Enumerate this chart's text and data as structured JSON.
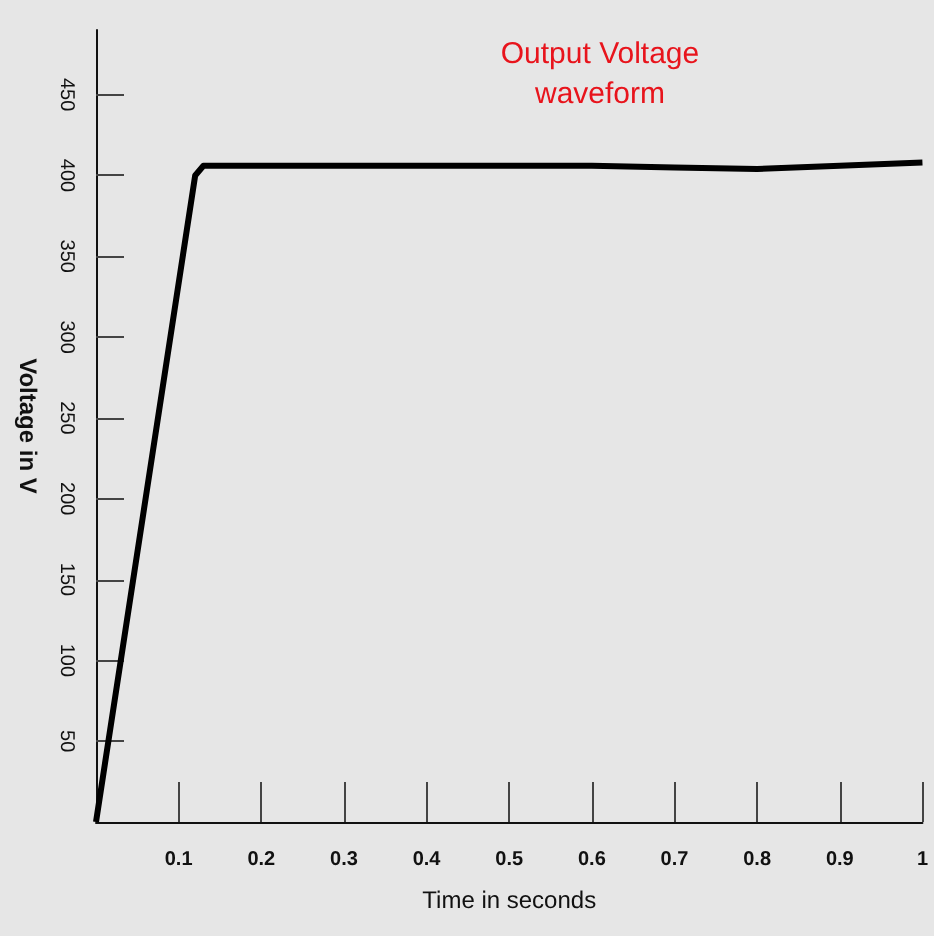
{
  "chart_data": {
    "type": "line",
    "title": "Output Voltage\nwaveform",
    "xlabel": "Time in seconds",
    "ylabel": "Voltage in V",
    "x": [
      0,
      0.12,
      0.13,
      0.2,
      0.4,
      0.6,
      0.7,
      0.8,
      0.9,
      1.0
    ],
    "series": [
      {
        "color": "#000000",
        "values": [
          0,
          400,
          406,
          406,
          406,
          406,
          405,
          404,
          406,
          408
        ]
      }
    ],
    "xlim": [
      0,
      1
    ],
    "xticks": [
      0.1,
      0.2,
      0.3,
      0.4,
      0.5,
      0.6,
      0.7,
      0.8,
      0.9,
      1
    ],
    "ylim": [
      0,
      490
    ],
    "yticks": [
      50,
      100,
      150,
      200,
      250,
      300,
      350,
      400,
      450
    ],
    "grid": false,
    "marker": "none",
    "line_style": "solid"
  }
}
